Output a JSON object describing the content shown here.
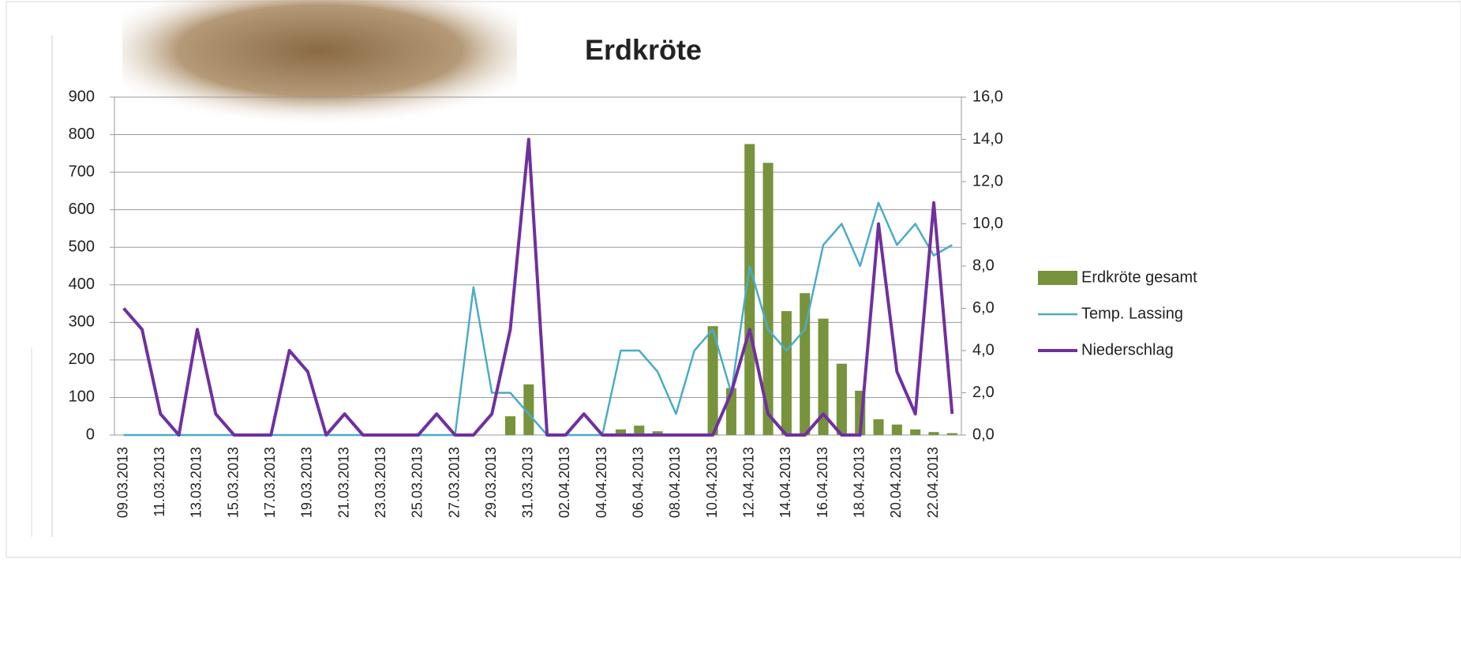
{
  "chart_data": {
    "type": "combo",
    "title": "Erdkröte",
    "categories": [
      "09.03.2013",
      null,
      "11.03.2013",
      null,
      "13.03.2013",
      null,
      "15.03.2013",
      null,
      "17.03.2013",
      null,
      "19.03.2013",
      null,
      "21.03.2013",
      null,
      "23.03.2013",
      null,
      "25.03.2013",
      null,
      "27.03.2013",
      null,
      "29.03.2013",
      null,
      "31.03.2013",
      null,
      "02.04.2013",
      null,
      "04.04.2013",
      null,
      "06.04.2013",
      null,
      "08.04.2013",
      null,
      "10.04.2013",
      null,
      "12.04.2013",
      null,
      "14.04.2013",
      null,
      "16.04.2013",
      null,
      "18.04.2013",
      null,
      "20.04.2013",
      null,
      "22.04.2013",
      null
    ],
    "series": [
      {
        "name": "Erdkröte gesamt",
        "type": "bar",
        "axis": "y",
        "color": "#77933c",
        "values": [
          0,
          0,
          0,
          0,
          0,
          0,
          0,
          0,
          0,
          0,
          0,
          0,
          0,
          0,
          0,
          0,
          0,
          0,
          0,
          0,
          0,
          50,
          135,
          0,
          0,
          0,
          0,
          15,
          25,
          10,
          0,
          0,
          290,
          125,
          775,
          725,
          330,
          378,
          310,
          190,
          118,
          42,
          28,
          15,
          8,
          5
        ]
      },
      {
        "name": "Temp. Lassing",
        "type": "line",
        "axis": "y2",
        "color": "#4bacc6",
        "values": [
          0,
          0,
          0,
          0,
          0,
          0,
          0,
          0,
          0,
          0,
          0,
          0,
          0,
          0,
          0,
          0,
          0,
          0,
          0,
          7,
          2,
          2,
          1,
          0,
          0,
          0,
          0,
          4,
          4,
          3,
          1,
          4,
          5,
          2,
          8,
          5,
          4,
          5,
          9,
          10,
          8,
          11,
          9,
          10,
          8.5,
          9
        ]
      },
      {
        "name": "Niederschlag",
        "type": "line",
        "axis": "y2",
        "color": "#7030a0",
        "values": [
          6,
          5,
          1,
          0,
          5,
          1,
          0,
          0,
          0,
          4,
          3,
          0,
          1,
          0,
          0,
          0,
          0,
          1,
          0,
          0,
          1,
          5,
          14,
          0,
          0,
          1,
          0,
          0,
          0,
          0,
          0,
          0,
          0,
          2,
          5,
          1,
          0,
          0,
          1,
          0,
          0,
          10,
          3,
          1,
          11,
          1
        ]
      }
    ],
    "ylim": [
      0,
      900
    ],
    "yticks": [
      0,
      100,
      200,
      300,
      400,
      500,
      600,
      700,
      800,
      900
    ],
    "y2lim": [
      0,
      16
    ],
    "y2ticks": [
      {
        "value": 0,
        "label": "0,0"
      },
      {
        "value": 2,
        "label": "2,0"
      },
      {
        "value": 4,
        "label": "4,0"
      },
      {
        "value": 6,
        "label": "6,0"
      },
      {
        "value": 8,
        "label": "8,0"
      },
      {
        "value": 10,
        "label": "10,0"
      },
      {
        "value": 12,
        "label": "12,0"
      },
      {
        "value": 14,
        "label": "14,0"
      },
      {
        "value": 16,
        "label": "16,0"
      }
    ],
    "grid": true,
    "legend": "right"
  }
}
